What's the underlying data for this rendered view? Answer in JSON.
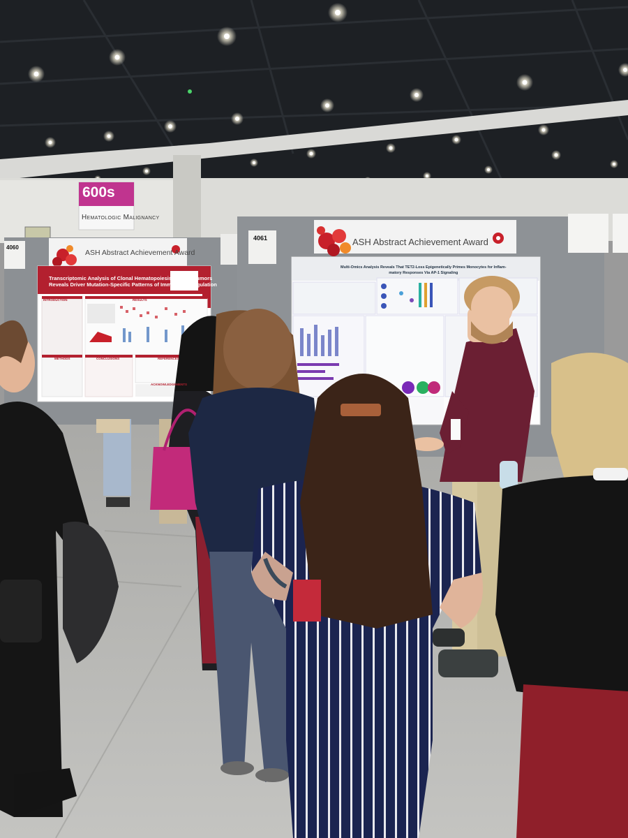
{
  "scene": {
    "description_colors": {
      "ceiling": "#1f2226",
      "floor": "#b9b9b6",
      "board": "#8e9296",
      "brand_red": "#b3202f",
      "sign_magenta": "#c0348f"
    }
  },
  "section_sign": {
    "code": "600s",
    "label": "Hematologic Malignancy"
  },
  "poster_left": {
    "board_number": "4060",
    "award_banner": "ASH Abstract Achievement Award",
    "title_line1": "Transcriptomic Analysis of Clonal Hematopoiesis in Solid Tumors",
    "title_line2": "Reveals Driver Mutation-Specific Patterns of Immune Dysregulation",
    "sections": {
      "intro": "INTRODUCTION",
      "results": "RESULTS",
      "methods": "METHODS",
      "conclusions": "CONCLUSIONS",
      "references": "REFERENCES",
      "acknowledgements": "ACKNOWLEDGEMENTS"
    }
  },
  "poster_right": {
    "board_number": "4061",
    "award_banner": "ASH Abstract Achievement Award",
    "title_line1": "Multi-Omics Analysis Reveals That TET2-Loss Epigenetically Primes Monocytes for Inflam-",
    "title_line2": "matory Responses Via AP-1 Signaling"
  }
}
